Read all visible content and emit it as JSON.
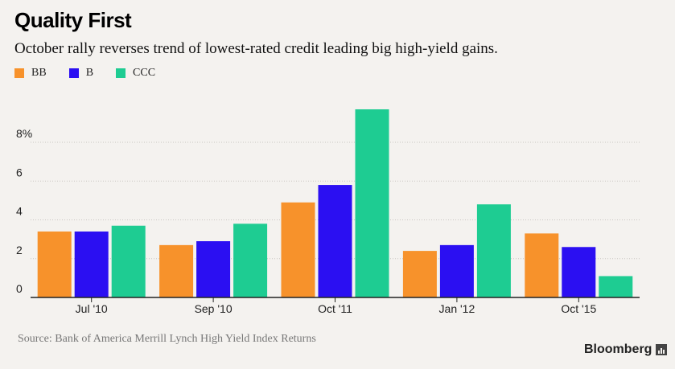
{
  "header": {
    "title": "Quality First",
    "subtitle": "October rally reverses trend of lowest-rated credit leading big high-yield gains."
  },
  "footer": {
    "source": "Source: Bank of America Merrill Lynch High Yield Index Returns",
    "brand": "Bloomberg"
  },
  "colors": {
    "BB": "#f7922b",
    "B": "#2b0ff2",
    "CCC": "#1ecc92",
    "background": "#f4f2ef",
    "grid": "#c9c6c2",
    "axis": "#222222"
  },
  "chart_data": {
    "type": "bar",
    "title": "Quality First",
    "subtitle": "October rally reverses trend of lowest-rated credit leading big high-yield gains.",
    "xlabel": "",
    "ylabel": "",
    "categories": [
      "Jul '10",
      "Sep '10",
      "Oct '11",
      "Jan '12",
      "Oct '15"
    ],
    "series": [
      {
        "name": "BB",
        "values": [
          3.4,
          2.7,
          4.9,
          2.4,
          3.3
        ]
      },
      {
        "name": "B",
        "values": [
          3.4,
          2.9,
          5.8,
          2.7,
          2.6
        ]
      },
      {
        "name": "CCC",
        "values": [
          3.7,
          3.8,
          9.7,
          4.8,
          1.1
        ]
      }
    ],
    "ylim": [
      0,
      10
    ],
    "yticks": [
      0,
      2,
      4,
      6,
      8
    ],
    "ytick_labels": [
      "0",
      "2",
      "4",
      "6",
      "8%"
    ],
    "grid": true,
    "legend": "top-left"
  }
}
